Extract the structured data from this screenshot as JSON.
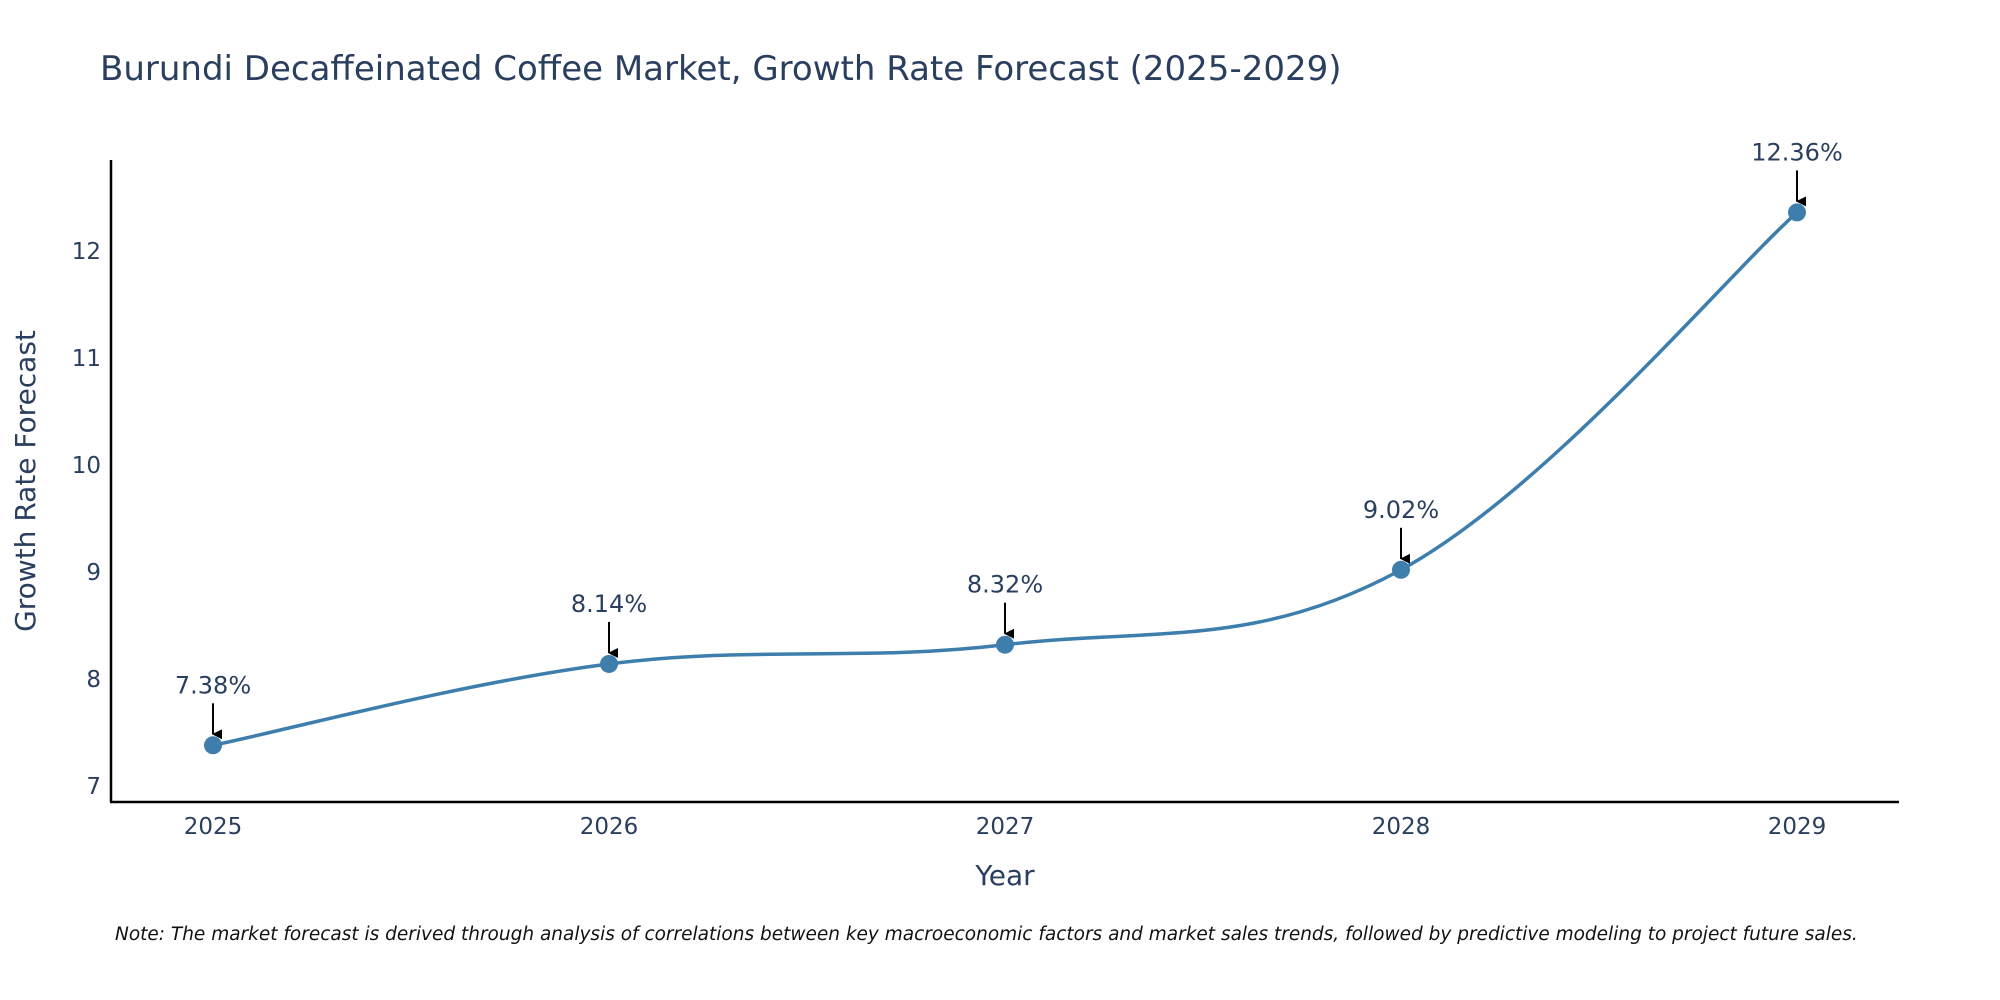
{
  "chart_data": {
    "type": "line",
    "title": "Burundi Decaffeinated Coffee Market, Growth Rate Forecast (2025-2029)",
    "xlabel": "Year",
    "ylabel": "Growth Rate Forecast",
    "categories": [
      "2025",
      "2026",
      "2027",
      "2028",
      "2029"
    ],
    "values": [
      7.38,
      8.14,
      8.32,
      9.02,
      12.36
    ],
    "data_labels": [
      "7.38%",
      "8.14%",
      "8.32%",
      "9.02%",
      "12.36%"
    ],
    "y_ticks": [
      7,
      8,
      9,
      10,
      11,
      12
    ],
    "y_tick_labels": [
      "7",
      "8",
      "9",
      "10",
      "11",
      "12"
    ],
    "ylim": [
      6.85,
      12.85
    ],
    "grid": false,
    "line_shape": "spline",
    "line_color": "#3d7ead",
    "marker_color": "#3d7ead",
    "annotation_arrow_color": "#000000",
    "note": "Note: The market forecast is derived through analysis of correlations between key macroeconomic factors and market sales trends, followed by predictive modeling to project future sales."
  }
}
